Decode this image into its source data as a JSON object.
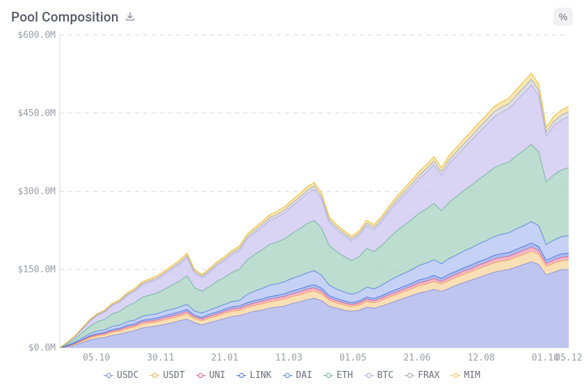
{
  "header": {
    "title": "Pool Composition",
    "download_icon": "download-icon",
    "toggle_label": "%"
  },
  "chart": {
    "type": "stacked-area",
    "background_color": "#ffffff",
    "grid_color": "#d7d8de",
    "grid_dash": "6 6",
    "axis_color": "#d7d8de",
    "tick_font_family": "monospace",
    "tick_font_size": 13,
    "tick_color": "#9a9ca8",
    "y_axis": {
      "min": 0,
      "max": 600,
      "unit_suffix": "M",
      "currency_prefix": "$",
      "tick_step": 150,
      "tick_labels": [
        "$0.0M",
        "$150.0M",
        "$300.0M",
        "$450.0M",
        "$600.0M"
      ]
    },
    "x_axis": {
      "tick_positions": [
        0.072,
        0.198,
        0.324,
        0.45,
        0.576,
        0.702,
        0.828,
        0.954,
        1.06
      ],
      "tick_labels": [
        "05.10",
        "30.11",
        "21.01",
        "11.03",
        "01.05",
        "21.06",
        "12.08",
        "01.10",
        "05.12"
      ]
    },
    "series": [
      {
        "key": "USDC",
        "label": "USDC",
        "stroke": "#6f7fe0",
        "fill": "#a9b2ec",
        "fill_opacity": 0.75,
        "data": [
          0,
          2,
          5,
          10,
          15,
          18,
          20,
          24,
          26,
          30,
          33,
          38,
          40,
          42,
          45,
          48,
          52,
          55,
          48,
          44,
          48,
          52,
          56,
          60,
          62,
          66,
          70,
          72,
          76,
          78,
          80,
          85,
          88,
          92,
          95,
          90,
          80,
          76,
          72,
          70,
          72,
          78,
          76,
          80,
          85,
          90,
          95,
          100,
          105,
          108,
          112,
          108,
          114,
          120,
          125,
          130,
          135,
          140,
          145,
          148,
          150,
          155,
          160,
          165,
          160,
          140,
          145,
          150,
          150
        ]
      },
      {
        "key": "USDT",
        "label": "USDT",
        "stroke": "#f2a83c",
        "fill": "#f8d9a8",
        "fill_opacity": 0.85,
        "data": [
          0,
          1,
          2,
          3,
          4,
          5,
          5,
          6,
          6,
          7,
          7,
          8,
          8,
          8,
          9,
          9,
          9,
          10,
          8,
          8,
          9,
          9,
          10,
          10,
          10,
          11,
          11,
          12,
          12,
          12,
          13,
          13,
          13,
          14,
          14,
          13,
          11,
          10,
          10,
          9,
          10,
          11,
          10,
          11,
          12,
          12,
          13,
          13,
          14,
          14,
          15,
          14,
          15,
          15,
          16,
          16,
          17,
          17,
          18,
          18,
          18,
          19,
          19,
          20,
          19,
          16,
          17,
          17,
          18
        ]
      },
      {
        "key": "UNI",
        "label": "UNI",
        "stroke": "#e0527a",
        "fill": "#f1a9bf",
        "fill_opacity": 0.85,
        "data": [
          0,
          0.5,
          1,
          1.5,
          2,
          2,
          2.5,
          2.5,
          3,
          3,
          3,
          3.5,
          3.5,
          3.5,
          4,
          4,
          4,
          4.5,
          3.5,
          3.5,
          4,
          4,
          4,
          4.5,
          4.5,
          4.5,
          5,
          5,
          5,
          5.5,
          5.5,
          5.5,
          6,
          6,
          6,
          5.5,
          4.5,
          4.5,
          4,
          4,
          4,
          4.5,
          4.5,
          4.5,
          5,
          5,
          5,
          5.5,
          5.5,
          6,
          6,
          5.5,
          6,
          6,
          6.5,
          6.5,
          7,
          7,
          7,
          7.5,
          7.5,
          7.5,
          8,
          8,
          7.5,
          6,
          6.5,
          6.5,
          7
        ]
      },
      {
        "key": "LINK",
        "label": "LINK",
        "stroke": "#3a63d6",
        "fill": "#9db3ed",
        "fill_opacity": 0.85,
        "data": [
          0,
          0.5,
          1,
          1.5,
          2,
          2,
          2,
          2.5,
          2.5,
          3,
          3,
          3,
          3.5,
          3.5,
          3.5,
          4,
          4,
          4,
          3,
          3,
          3.5,
          3.5,
          4,
          4,
          4,
          4.5,
          4.5,
          4.5,
          5,
          5,
          5,
          5.5,
          5.5,
          5.5,
          6,
          5.5,
          4.5,
          4,
          4,
          3.5,
          4,
          4,
          4,
          4.5,
          4.5,
          5,
          5,
          5,
          5.5,
          5.5,
          6,
          5.5,
          6,
          6,
          6,
          6.5,
          6.5,
          6.5,
          7,
          7,
          7,
          7.5,
          7.5,
          8,
          7.5,
          6,
          6,
          6.5,
          6.5
        ]
      },
      {
        "key": "DAI",
        "label": "DAI",
        "stroke": "#4a76e6",
        "fill": "#b6c7f2",
        "fill_opacity": 0.8,
        "data": [
          0,
          1,
          2,
          3,
          4,
          5,
          5,
          6,
          6,
          7,
          7,
          8,
          8,
          8,
          9,
          9,
          9,
          10,
          8,
          8,
          8,
          9,
          9,
          10,
          10,
          16,
          18,
          20,
          22,
          22,
          23,
          24,
          25,
          26,
          27,
          25,
          20,
          18,
          17,
          16,
          17,
          19,
          18,
          20,
          22,
          24,
          25,
          26,
          28,
          29,
          30,
          28,
          30,
          31,
          32,
          33,
          34,
          35,
          36,
          37,
          38,
          39,
          40,
          41,
          40,
          30,
          32,
          33,
          34
        ]
      },
      {
        "key": "ETH",
        "label": "ETH",
        "stroke": "#5fae8c",
        "fill": "#a9d3c3",
        "fill_opacity": 0.78,
        "data": [
          0,
          3,
          6,
          10,
          14,
          18,
          20,
          24,
          26,
          30,
          33,
          36,
          38,
          40,
          42,
          46,
          50,
          55,
          45,
          42,
          45,
          50,
          52,
          56,
          60,
          66,
          70,
          74,
          78,
          80,
          82,
          86,
          90,
          94,
          96,
          90,
          76,
          72,
          68,
          65,
          68,
          74,
          72,
          76,
          82,
          88,
          92,
          96,
          100,
          104,
          108,
          102,
          108,
          112,
          116,
          120,
          124,
          128,
          132,
          134,
          136,
          140,
          144,
          148,
          142,
          120,
          125,
          128,
          130
        ]
      },
      {
        "key": "BTC",
        "label": "BTC",
        "stroke": "#a99ee4",
        "fill": "#cec8f0",
        "fill_opacity": 0.78,
        "data": [
          0,
          2,
          4,
          7,
          10,
          12,
          14,
          16,
          18,
          20,
          22,
          24,
          25,
          26,
          28,
          30,
          32,
          35,
          28,
          26,
          28,
          30,
          32,
          34,
          36,
          40,
          42,
          44,
          46,
          48,
          50,
          52,
          55,
          58,
          60,
          55,
          45,
          42,
          40,
          38,
          40,
          44,
          42,
          46,
          50,
          54,
          58,
          62,
          66,
          70,
          74,
          68,
          74,
          78,
          82,
          86,
          90,
          94,
          98,
          100,
          102,
          106,
          110,
          114,
          108,
          88,
          94,
          96,
          98
        ]
      },
      {
        "key": "FRAX",
        "label": "FRAX",
        "stroke": "#9a9ca8",
        "fill": "#d8d9de",
        "fill_opacity": 0.85,
        "data": [
          0,
          0.3,
          0.6,
          1,
          1.3,
          1.6,
          1.8,
          2,
          2.2,
          2.5,
          2.7,
          3,
          3,
          3.2,
          3.4,
          3.6,
          3.8,
          4,
          3.2,
          3,
          3.2,
          3.5,
          3.7,
          4,
          4.2,
          4.5,
          4.7,
          5,
          5.2,
          5.4,
          5.6,
          5.8,
          6,
          6.2,
          6.4,
          6,
          5,
          4.7,
          4.5,
          4.3,
          4.5,
          4.8,
          4.7,
          5,
          5.4,
          5.8,
          6.2,
          6.6,
          7,
          7.3,
          7.6,
          7.2,
          7.6,
          8,
          8.3,
          8.6,
          9,
          9.3,
          9.6,
          9.8,
          10,
          10.4,
          10.8,
          11.2,
          10.8,
          8.5,
          9,
          9.2,
          9.5
        ]
      },
      {
        "key": "MIM",
        "label": "MIM",
        "stroke": "#efc24a",
        "fill": "#f7e3a8",
        "fill_opacity": 0.85,
        "data": [
          0,
          0.3,
          0.6,
          1,
          1.3,
          1.6,
          1.8,
          2,
          2.2,
          2.5,
          2.7,
          3,
          3,
          3.2,
          3.4,
          3.6,
          3.8,
          4,
          3.2,
          3,
          3.2,
          3.5,
          3.7,
          4,
          4.2,
          4.5,
          4.7,
          5,
          5.2,
          5.4,
          5.6,
          5.8,
          6,
          6.2,
          6.4,
          6,
          5,
          4.7,
          4.5,
          4.3,
          4.5,
          4.8,
          4.7,
          5,
          5.4,
          5.8,
          6.2,
          6.6,
          7,
          7.3,
          7.6,
          7.2,
          7.6,
          8,
          8.3,
          8.6,
          9,
          9.3,
          9.6,
          9.8,
          10,
          10.4,
          10.8,
          11.2,
          10.8,
          8.5,
          9,
          9.2,
          9.5
        ]
      }
    ],
    "legend": {
      "font_size": 13,
      "font_family": "monospace",
      "text_color": "#6b6d7a",
      "marker_style": "line-with-ring"
    }
  }
}
